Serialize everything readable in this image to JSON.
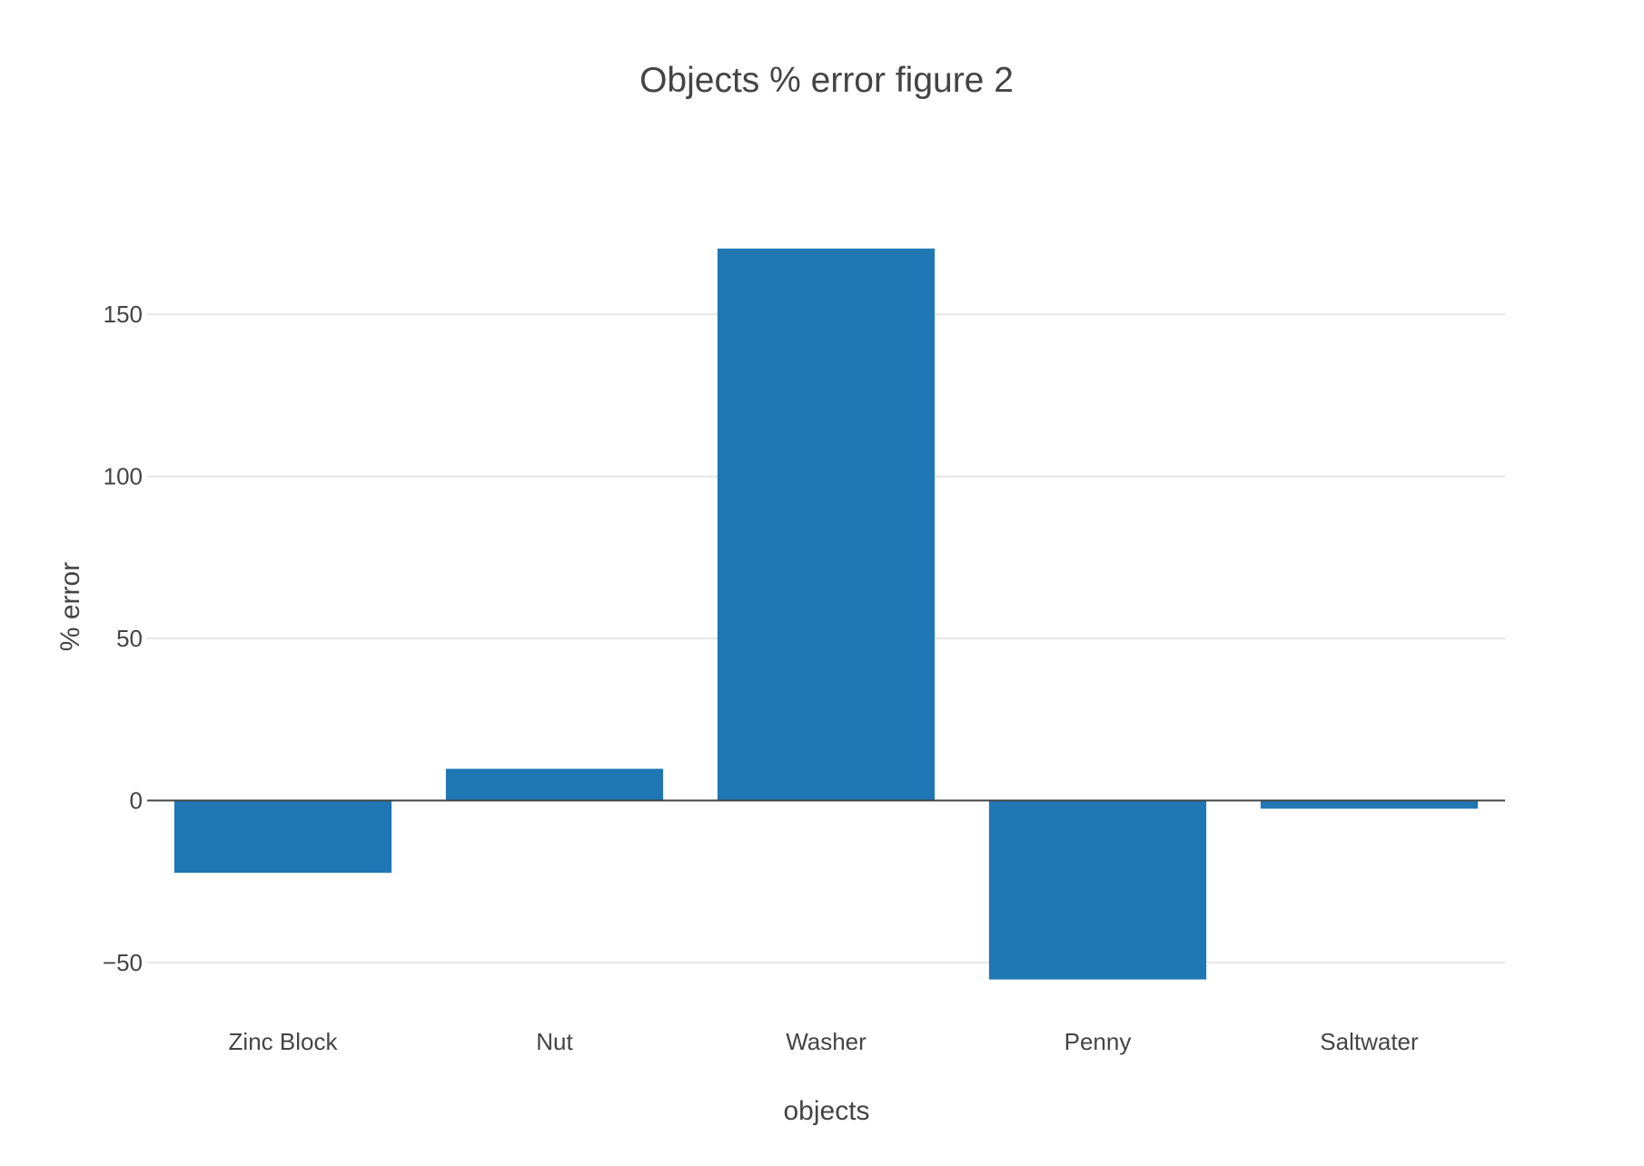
{
  "chart_data": {
    "type": "bar",
    "title": "Objects % error figure 2",
    "xlabel": "objects",
    "ylabel": "% error",
    "categories": [
      "Zinc Block",
      "Nut",
      "Washer",
      "Penny",
      "Saltwater"
    ],
    "values": [
      -22.3,
      9.8,
      170.3,
      -55.2,
      -2.5
    ],
    "yticks": [
      -50,
      0,
      50,
      100,
      150
    ],
    "ytick_labels": [
      "−50",
      "0",
      "50",
      "100",
      "150"
    ],
    "ylim": [
      -66.8,
      187.3
    ],
    "grid": true,
    "bar_color": "#1f77b4"
  }
}
